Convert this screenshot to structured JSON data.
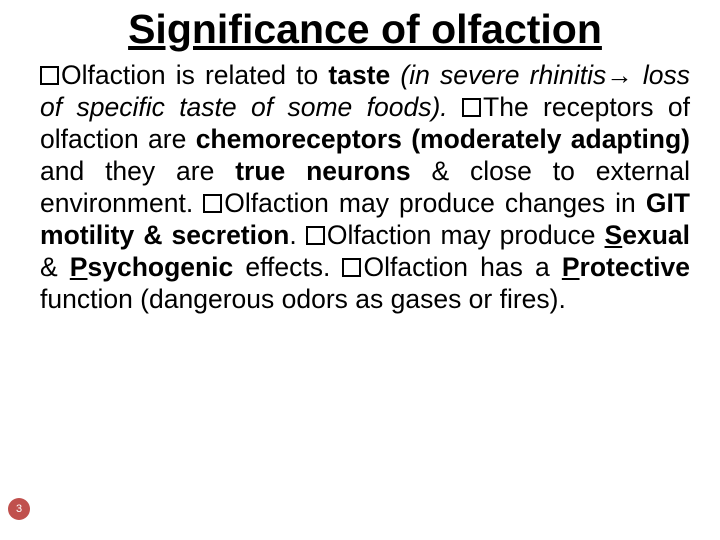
{
  "title": "Significance of olfaction",
  "pageNumber": "3",
  "colors": {
    "background": "#ffffff",
    "text": "#000000",
    "badgeBg": "#c0504d",
    "badgeText": "#ffffff",
    "bulletBorder": "#000000"
  },
  "typography": {
    "titleFontSize": 41,
    "bodyFontSize": 26.5,
    "lineHeight": 1.21,
    "fontFamily": "Arial"
  },
  "bullets": [
    {
      "runs": [
        {
          "t": "Olfaction is related to ",
          "b": false,
          "i": false,
          "u": false
        },
        {
          "t": "taste",
          "b": true,
          "i": false,
          "u": false
        },
        {
          "t": " ",
          "b": false,
          "i": false,
          "u": false
        },
        {
          "t": "(in severe rhinitis",
          "b": false,
          "i": true,
          "u": false
        },
        {
          "t": "→",
          "b": false,
          "i": true,
          "u": false,
          "arrow": true
        },
        {
          "t": " loss of specific taste of some foods).",
          "b": false,
          "i": true,
          "u": false
        }
      ]
    },
    {
      "runs": [
        {
          "t": "The receptors of olfaction are ",
          "b": false,
          "i": false,
          "u": false
        },
        {
          "t": "chemoreceptors (moderately adapting) ",
          "b": true,
          "i": false,
          "u": false
        },
        {
          "t": "and they are ",
          "b": false,
          "i": false,
          "u": false
        },
        {
          "t": "true neurons",
          "b": true,
          "i": false,
          "u": false
        },
        {
          "t": " & close to external environment.",
          "b": false,
          "i": false,
          "u": false
        }
      ]
    },
    {
      "runs": [
        {
          "t": "Olfaction may produce changes in ",
          "b": false,
          "i": false,
          "u": false
        },
        {
          "t": "GIT motility & secretion",
          "b": true,
          "i": false,
          "u": false
        },
        {
          "t": ".",
          "b": false,
          "i": false,
          "u": false
        }
      ]
    },
    {
      "runs": [
        {
          "t": "Olfaction may produce ",
          "b": false,
          "i": false,
          "u": false
        },
        {
          "t": "S",
          "b": true,
          "i": false,
          "u": true
        },
        {
          "t": "exual",
          "b": true,
          "i": false,
          "u": false
        },
        {
          "t": " & ",
          "b": false,
          "i": false,
          "u": false
        },
        {
          "t": "P",
          "b": true,
          "i": false,
          "u": true
        },
        {
          "t": "sychogenic",
          "b": true,
          "i": false,
          "u": false
        },
        {
          "t": " effects.",
          "b": false,
          "i": false,
          "u": false
        }
      ]
    },
    {
      "runs": [
        {
          "t": "Olfaction has a ",
          "b": false,
          "i": false,
          "u": false
        },
        {
          "t": "P",
          "b": true,
          "i": false,
          "u": true
        },
        {
          "t": "rotective",
          "b": true,
          "i": false,
          "u": false
        },
        {
          "t": " function (dangerous odors as gases or fires).",
          "b": false,
          "i": false,
          "u": false
        }
      ]
    }
  ]
}
